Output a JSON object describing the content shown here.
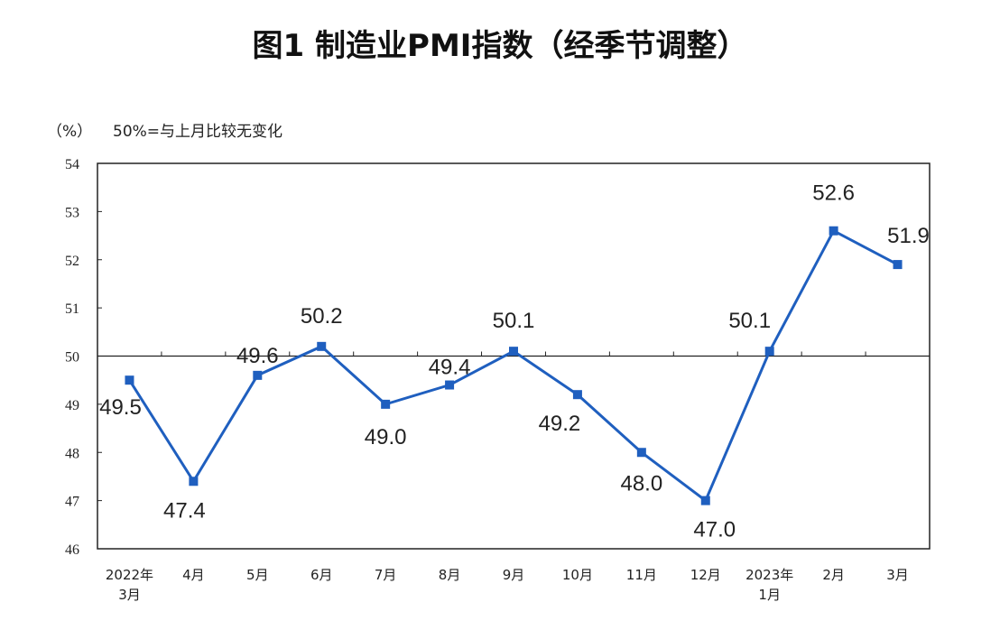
{
  "chart_data": {
    "type": "line",
    "title": "图1 制造业PMI指数（经季节调整）",
    "ylabel": "（%）",
    "annotation": "50%=与上月比较无变化",
    "categories": [
      [
        "2022年",
        "3月"
      ],
      [
        "4月"
      ],
      [
        "5月"
      ],
      [
        "6月"
      ],
      [
        "7月"
      ],
      [
        "8月"
      ],
      [
        "9月"
      ],
      [
        "10月"
      ],
      [
        "11月"
      ],
      [
        "12月"
      ],
      [
        "2023年",
        "1月"
      ],
      [
        "2月"
      ],
      [
        "3月"
      ]
    ],
    "values": [
      49.5,
      47.4,
      49.6,
      50.2,
      49.0,
      49.4,
      50.1,
      49.2,
      48.0,
      47.0,
      50.1,
      52.6,
      51.9
    ],
    "data_labels": [
      "49.5",
      "47.4",
      "49.6",
      "50.2",
      "49.0",
      "49.4",
      "50.1",
      "49.2",
      "48.0",
      "47.0",
      "50.1",
      "52.6",
      "51.9"
    ],
    "ylim": [
      46,
      54
    ],
    "yticks": [
      46,
      47,
      48,
      49,
      50,
      51,
      52,
      53,
      54
    ],
    "reference_line": 50,
    "grid": false,
    "line_color": "#1f5fbf"
  }
}
